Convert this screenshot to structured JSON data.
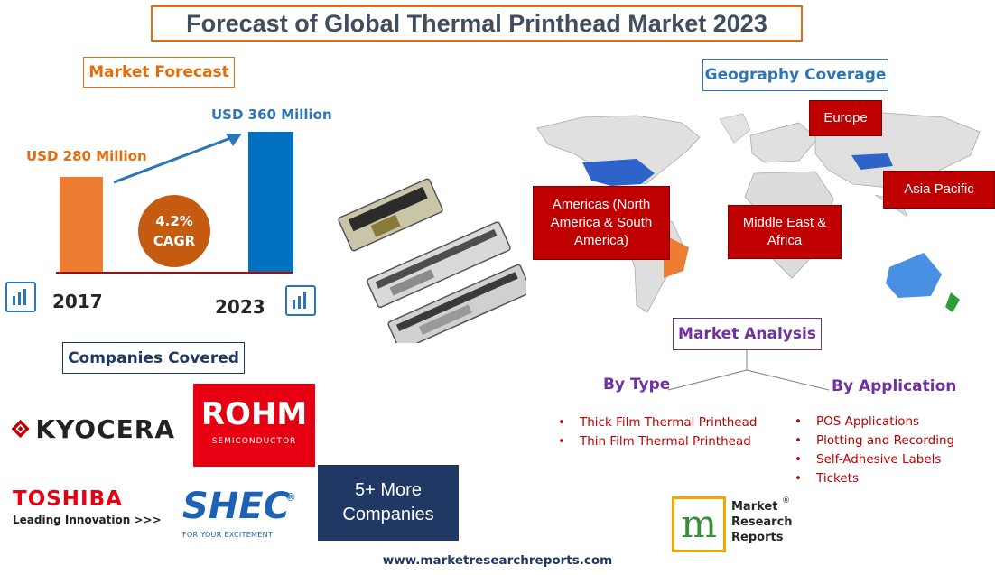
{
  "title": "Forecast of Global Thermal Printhead Market 2023",
  "market_forecast": {
    "heading": "Market Forecast",
    "value_2017": "USD 280 Million",
    "value_2023": "USD 360 Million",
    "cagr_value": "4.2%",
    "cagr_label": "CAGR",
    "year_start": "2017",
    "year_end": "2023",
    "colors": {
      "bar_2017": "#ed7d31",
      "bar_2023": "#0070c0",
      "cagr": "#c55a11"
    }
  },
  "companies": {
    "heading": "Companies Covered",
    "kyocera": "KYOCERA",
    "rohm": "ROHM",
    "rohm_sub": "SEMICONDUCTOR",
    "toshiba": "TOSHIBA",
    "toshiba_tag": "Leading Innovation >>>",
    "shec": "SHEC",
    "shec_tag": "FOR YOUR EXCITEMENT",
    "more_line1": "5+ More",
    "more_line2": "Companies"
  },
  "geography": {
    "heading": "Geography Coverage",
    "regions": {
      "europe": "Europe",
      "americas_line1": "Americas (North",
      "americas_line2": "America & South",
      "americas_line3": "America)",
      "mea_line1": "Middle East &",
      "mea_line2": "Africa",
      "apac": "Asia Pacific"
    }
  },
  "market_analysis": {
    "heading": "Market Analysis",
    "by_type": {
      "heading": "By Type",
      "items": [
        "Thick Film Thermal Printhead",
        "Thin Film Thermal Printhead"
      ]
    },
    "by_application": {
      "heading": "By Application",
      "items": [
        "POS Applications",
        "Plotting and Recording",
        "Self-Adhesive Labels",
        "Tickets"
      ]
    }
  },
  "brand": {
    "line1": "Market",
    "line2": "Research",
    "line3": "Reports"
  },
  "footer_url": "www.marketresearchreports.com"
}
